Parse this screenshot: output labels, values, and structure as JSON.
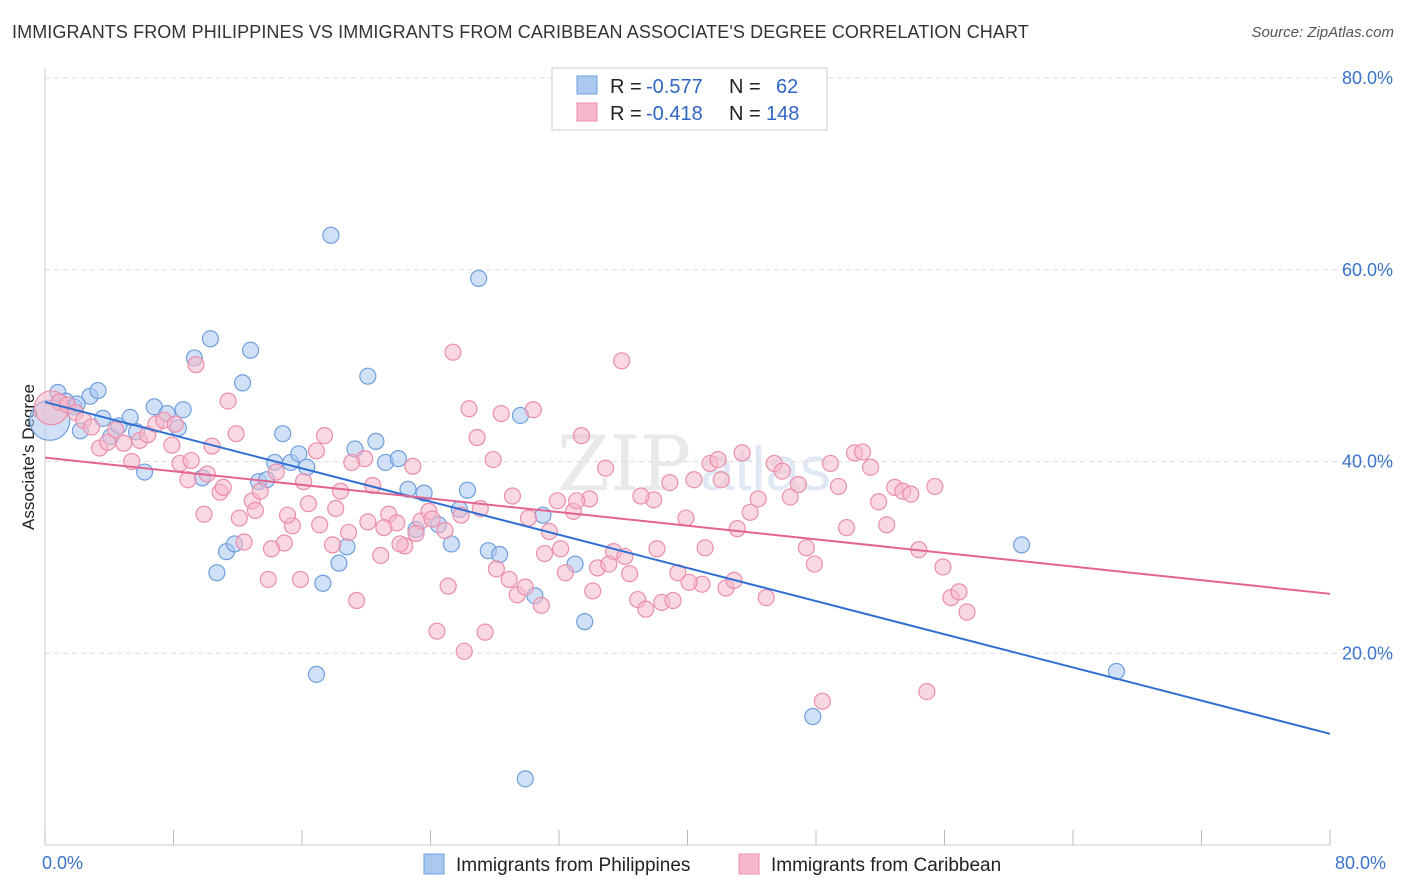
{
  "header": {
    "title": "IMMIGRANTS FROM PHILIPPINES VS IMMIGRANTS FROM CARIBBEAN ASSOCIATE'S DEGREE CORRELATION CHART",
    "source": "Source: ZipAtlas.com"
  },
  "watermark": {
    "zip": "ZIP",
    "atlas": "atlas"
  },
  "legend_box": {
    "rows": [
      {
        "r_label": "R =",
        "r_value": "-0.577",
        "n_label": "N =",
        "n_value": "62"
      },
      {
        "r_label": "R =",
        "r_value": "-0.418",
        "n_label": "N =",
        "n_value": "148"
      }
    ]
  },
  "bottom_legend": {
    "items": [
      "Immigrants from Philippines",
      "Immigrants from Caribbean"
    ]
  },
  "colors": {
    "philippines_fill": "#aac8f0",
    "philippines_stroke": "#6f9fdd",
    "philippines_line": "#2f6fd1",
    "caribbean_fill": "#f6b8cb",
    "caribbean_stroke": "#eb8eab",
    "caribbean_line": "#e2648f",
    "tick_label": "#3b73c9",
    "grid": "#dddddd"
  },
  "chart_data": {
    "type": "scatter",
    "title": "IMMIGRANTS FROM PHILIPPINES VS IMMIGRANTS FROM CARIBBEAN ASSOCIATE'S DEGREE CORRELATION CHART",
    "xlabel": "",
    "ylabel": "Associate's Degree",
    "xlim": [
      0,
      80
    ],
    "ylim": [
      0,
      80
    ],
    "x_tick_labels": [
      "0.0%",
      "80.0%"
    ],
    "y_tick_values": [
      20,
      40,
      60,
      80
    ],
    "y_tick_labels": [
      "20.0%",
      "40.0%",
      "60.0%",
      "80.0%"
    ],
    "grid": true,
    "legend_position": "top-center",
    "series": [
      {
        "name": "Immigrants from Philippines",
        "r": -0.577,
        "n": 62,
        "trend": {
          "x": [
            0,
            80
          ],
          "y": [
            46.2,
            11.6
          ]
        },
        "points": [
          [
            0.3,
            44.3
          ],
          [
            0.8,
            47.2
          ],
          [
            1.3,
            46.3
          ],
          [
            1.8,
            45.7
          ],
          [
            2.2,
            43.2
          ],
          [
            2.8,
            46.8
          ],
          [
            3.3,
            47.4
          ],
          [
            3.6,
            44.5
          ],
          [
            4.1,
            42.6
          ],
          [
            4.6,
            43.7
          ],
          [
            5.3,
            44.6
          ],
          [
            5.7,
            43.1
          ],
          [
            6.2,
            38.9
          ],
          [
            6.8,
            45.7
          ],
          [
            7.6,
            45.0
          ],
          [
            8.3,
            43.5
          ],
          [
            8.6,
            45.4
          ],
          [
            9.3,
            50.8
          ],
          [
            9.8,
            38.3
          ],
          [
            10.3,
            52.8
          ],
          [
            10.7,
            28.4
          ],
          [
            11.3,
            30.6
          ],
          [
            11.8,
            31.4
          ],
          [
            12.3,
            48.2
          ],
          [
            12.8,
            51.6
          ],
          [
            13.3,
            37.9
          ],
          [
            13.8,
            38.1
          ],
          [
            14.3,
            39.9
          ],
          [
            14.8,
            42.9
          ],
          [
            15.3,
            39.9
          ],
          [
            15.8,
            40.8
          ],
          [
            16.3,
            39.4
          ],
          [
            16.9,
            17.8
          ],
          [
            17.3,
            27.3
          ],
          [
            17.8,
            63.6
          ],
          [
            18.3,
            29.4
          ],
          [
            18.8,
            31.1
          ],
          [
            19.3,
            41.3
          ],
          [
            20.1,
            48.9
          ],
          [
            20.6,
            42.1
          ],
          [
            21.2,
            39.9
          ],
          [
            22.0,
            40.3
          ],
          [
            22.6,
            37.1
          ],
          [
            23.1,
            32.9
          ],
          [
            23.6,
            36.7
          ],
          [
            24.5,
            33.4
          ],
          [
            25.3,
            31.4
          ],
          [
            25.8,
            35.0
          ],
          [
            26.3,
            37.0
          ],
          [
            27.0,
            59.1
          ],
          [
            27.6,
            30.7
          ],
          [
            28.3,
            30.3
          ],
          [
            29.6,
            44.8
          ],
          [
            29.9,
            6.9
          ],
          [
            30.5,
            26.0
          ],
          [
            31.0,
            34.4
          ],
          [
            33.0,
            29.3
          ],
          [
            33.6,
            23.3
          ],
          [
            47.8,
            13.4
          ],
          [
            60.8,
            31.3
          ],
          [
            66.7,
            18.1
          ],
          [
            2.0,
            46.0
          ]
        ],
        "sizes": [
          4,
          1,
          1,
          1,
          1,
          1,
          1,
          1,
          1,
          1,
          1,
          1,
          1,
          1,
          1,
          1,
          1,
          1,
          1,
          1,
          1,
          1,
          1,
          1,
          1,
          1,
          1,
          1,
          1,
          1,
          1,
          1,
          1,
          1,
          1,
          1,
          1,
          1,
          1,
          1,
          1,
          1,
          1,
          1,
          1,
          1,
          1,
          1,
          1,
          1,
          1,
          1,
          1,
          1,
          1,
          1,
          1,
          1,
          1,
          1,
          1,
          1
        ]
      },
      {
        "name": "Immigrants from Caribbean",
        "r": -0.418,
        "n": 148,
        "trend": {
          "x": [
            0,
            80
          ],
          "y": [
            40.4,
            26.2
          ]
        },
        "points": [
          [
            0.4,
            45.6
          ],
          [
            0.9,
            46.2
          ],
          [
            1.4,
            45.9
          ],
          [
            1.9,
            45.1
          ],
          [
            2.4,
            44.3
          ],
          [
            2.9,
            43.6
          ],
          [
            3.4,
            41.4
          ],
          [
            3.9,
            42.0
          ],
          [
            4.4,
            43.3
          ],
          [
            4.9,
            41.9
          ],
          [
            5.4,
            40.0
          ],
          [
            5.9,
            42.2
          ],
          [
            6.4,
            42.8
          ],
          [
            6.9,
            43.9
          ],
          [
            7.4,
            44.3
          ],
          [
            7.9,
            41.7
          ],
          [
            8.4,
            39.8
          ],
          [
            8.9,
            38.1
          ],
          [
            9.4,
            50.1
          ],
          [
            9.9,
            34.5
          ],
          [
            10.4,
            41.6
          ],
          [
            10.9,
            36.8
          ],
          [
            11.4,
            46.3
          ],
          [
            11.9,
            42.9
          ],
          [
            12.4,
            31.6
          ],
          [
            12.9,
            35.9
          ],
          [
            13.4,
            36.9
          ],
          [
            13.9,
            27.7
          ],
          [
            14.4,
            38.9
          ],
          [
            14.9,
            31.5
          ],
          [
            15.4,
            33.3
          ],
          [
            15.9,
            27.7
          ],
          [
            16.4,
            35.6
          ],
          [
            16.9,
            41.1
          ],
          [
            17.4,
            42.7
          ],
          [
            17.9,
            31.3
          ],
          [
            18.4,
            36.9
          ],
          [
            18.9,
            32.6
          ],
          [
            19.4,
            25.5
          ],
          [
            19.9,
            40.3
          ],
          [
            20.4,
            37.5
          ],
          [
            20.9,
            30.2
          ],
          [
            21.4,
            34.5
          ],
          [
            21.9,
            33.6
          ],
          [
            22.4,
            31.2
          ],
          [
            22.9,
            39.5
          ],
          [
            23.4,
            33.8
          ],
          [
            23.9,
            34.8
          ],
          [
            24.4,
            22.3
          ],
          [
            24.9,
            32.8
          ],
          [
            25.4,
            51.4
          ],
          [
            25.9,
            34.4
          ],
          [
            26.4,
            45.5
          ],
          [
            26.9,
            42.5
          ],
          [
            27.4,
            22.2
          ],
          [
            27.9,
            40.2
          ],
          [
            28.4,
            45.0
          ],
          [
            28.9,
            27.7
          ],
          [
            29.4,
            26.1
          ],
          [
            29.9,
            26.9
          ],
          [
            30.4,
            45.4
          ],
          [
            30.9,
            25.0
          ],
          [
            31.4,
            32.7
          ],
          [
            31.9,
            35.9
          ],
          [
            32.4,
            28.4
          ],
          [
            32.9,
            34.8
          ],
          [
            33.4,
            42.7
          ],
          [
            33.9,
            36.1
          ],
          [
            34.4,
            28.9
          ],
          [
            34.9,
            39.3
          ],
          [
            35.4,
            30.6
          ],
          [
            35.9,
            50.5
          ],
          [
            36.4,
            28.3
          ],
          [
            36.9,
            25.6
          ],
          [
            37.4,
            24.6
          ],
          [
            37.9,
            36.0
          ],
          [
            38.4,
            25.3
          ],
          [
            38.9,
            37.8
          ],
          [
            39.4,
            28.4
          ],
          [
            39.9,
            34.1
          ],
          [
            40.4,
            38.1
          ],
          [
            40.9,
            27.2
          ],
          [
            41.4,
            39.8
          ],
          [
            41.9,
            40.2
          ],
          [
            42.4,
            26.8
          ],
          [
            42.9,
            27.6
          ],
          [
            43.4,
            40.9
          ],
          [
            43.9,
            34.7
          ],
          [
            44.4,
            36.1
          ],
          [
            44.9,
            25.8
          ],
          [
            45.4,
            39.8
          ],
          [
            45.9,
            39.0
          ],
          [
            46.4,
            36.3
          ],
          [
            46.9,
            37.6
          ],
          [
            47.4,
            31.0
          ],
          [
            47.9,
            29.3
          ],
          [
            48.4,
            15.0
          ],
          [
            48.9,
            39.8
          ],
          [
            49.4,
            37.4
          ],
          [
            49.9,
            33.1
          ],
          [
            50.4,
            40.9
          ],
          [
            50.9,
            41.0
          ],
          [
            51.4,
            39.4
          ],
          [
            51.9,
            35.8
          ],
          [
            52.4,
            33.4
          ],
          [
            52.9,
            37.3
          ],
          [
            53.4,
            36.9
          ],
          [
            53.9,
            36.6
          ],
          [
            54.4,
            30.8
          ],
          [
            54.9,
            16.0
          ],
          [
            55.4,
            37.4
          ],
          [
            55.9,
            29.0
          ],
          [
            56.4,
            25.8
          ],
          [
            56.9,
            26.4
          ],
          [
            57.4,
            24.3
          ],
          [
            8.1,
            43.9
          ],
          [
            9.1,
            40.1
          ],
          [
            10.1,
            38.7
          ],
          [
            11.1,
            37.3
          ],
          [
            12.1,
            34.1
          ],
          [
            13.1,
            34.9
          ],
          [
            14.1,
            30.9
          ],
          [
            15.1,
            34.4
          ],
          [
            16.1,
            37.9
          ],
          [
            17.1,
            33.4
          ],
          [
            18.1,
            35.1
          ],
          [
            19.1,
            39.9
          ],
          [
            20.1,
            33.7
          ],
          [
            21.1,
            33.1
          ],
          [
            22.1,
            31.4
          ],
          [
            23.1,
            32.5
          ],
          [
            24.1,
            34.0
          ],
          [
            25.1,
            27.0
          ],
          [
            26.1,
            20.2
          ],
          [
            27.1,
            35.1
          ],
          [
            28.1,
            28.8
          ],
          [
            29.1,
            36.4
          ],
          [
            30.1,
            34.1
          ],
          [
            31.1,
            30.4
          ],
          [
            32.1,
            30.9
          ],
          [
            33.1,
            35.9
          ],
          [
            34.1,
            26.5
          ],
          [
            35.1,
            29.3
          ],
          [
            36.1,
            30.1
          ],
          [
            37.1,
            36.4
          ],
          [
            38.1,
            30.9
          ],
          [
            39.1,
            25.5
          ],
          [
            40.1,
            27.4
          ],
          [
            41.1,
            31.0
          ],
          [
            42.1,
            38.1
          ],
          [
            43.1,
            33.0
          ]
        ],
        "sizes": [
          3,
          1,
          1,
          1,
          1,
          1,
          1,
          1,
          1,
          1,
          1,
          1,
          1,
          1,
          1,
          1,
          1,
          1,
          1,
          1,
          1,
          1,
          1,
          1,
          1,
          1,
          1,
          1,
          1,
          1,
          1,
          1,
          1,
          1,
          1,
          1,
          1,
          1,
          1,
          1,
          1,
          1,
          1,
          1,
          1,
          1,
          1,
          1,
          1,
          1,
          1,
          1,
          1,
          1,
          1,
          1,
          1,
          1,
          1,
          1,
          1,
          1,
          1,
          1,
          1,
          1,
          1,
          1,
          1,
          1,
          1,
          1,
          1,
          1,
          1,
          1,
          1,
          1,
          1,
          1,
          1,
          1,
          1,
          1,
          1,
          1,
          1,
          1,
          1,
          1,
          1,
          1,
          1,
          1,
          1,
          1,
          1,
          1,
          1,
          1,
          1,
          1,
          1,
          1,
          1,
          1,
          1,
          1,
          1,
          1,
          1,
          1,
          1,
          1,
          1,
          1,
          1,
          1,
          1,
          1,
          1,
          1,
          1,
          1,
          1,
          1,
          1,
          1,
          1,
          1,
          1,
          1,
          1,
          1,
          1,
          1,
          1,
          1,
          1,
          1,
          1,
          1,
          1,
          1,
          1,
          1,
          1,
          1
        ]
      }
    ]
  }
}
